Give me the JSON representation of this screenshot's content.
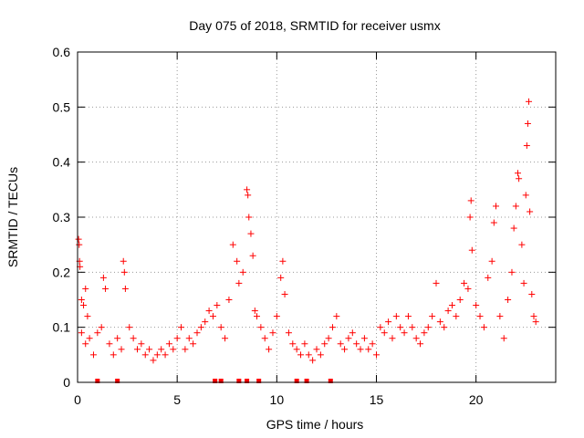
{
  "chart_data": {
    "type": "scatter",
    "title": "Day 075 of 2018, SRMTID for receiver usmx",
    "xlabel": "GPS time / hours",
    "ylabel": "SRMTID / TECUs",
    "xlim": [
      0,
      24
    ],
    "ylim": [
      0,
      0.6
    ],
    "xticks": [
      0,
      5,
      10,
      15,
      20
    ],
    "xtick_labels": [
      "0",
      "5",
      "10",
      "15",
      "20"
    ],
    "yticks": [
      0,
      0.1,
      0.2,
      0.3,
      0.4,
      0.5,
      0.6
    ],
    "ytick_labels": [
      "0",
      "0.1",
      "0.2",
      "0.3",
      "0.4",
      "0.5",
      "0.6"
    ],
    "grid": true,
    "marker": "+",
    "series_color": "#ff0000",
    "series": [
      {
        "name": "SRMTID",
        "points": [
          [
            0.05,
            0.26
          ],
          [
            0.08,
            0.25
          ],
          [
            0.1,
            0.22
          ],
          [
            0.12,
            0.21
          ],
          [
            0.2,
            0.15
          ],
          [
            0.3,
            0.14
          ],
          [
            0.4,
            0.17
          ],
          [
            0.5,
            0.12
          ],
          [
            0.2,
            0.09
          ],
          [
            0.4,
            0.07
          ],
          [
            0.6,
            0.08
          ],
          [
            0.8,
            0.05
          ],
          [
            1.0,
            0.09
          ],
          [
            1.2,
            0.1
          ],
          [
            1.3,
            0.19
          ],
          [
            1.4,
            0.17
          ],
          [
            1.6,
            0.07
          ],
          [
            1.8,
            0.05
          ],
          [
            2.0,
            0.08
          ],
          [
            2.2,
            0.06
          ],
          [
            2.3,
            0.22
          ],
          [
            2.35,
            0.2
          ],
          [
            2.4,
            0.17
          ],
          [
            2.6,
            0.1
          ],
          [
            2.8,
            0.08
          ],
          [
            3.0,
            0.06
          ],
          [
            3.2,
            0.07
          ],
          [
            3.4,
            0.05
          ],
          [
            3.6,
            0.06
          ],
          [
            3.8,
            0.04
          ],
          [
            4.0,
            0.05
          ],
          [
            4.2,
            0.06
          ],
          [
            4.4,
            0.05
          ],
          [
            4.6,
            0.07
          ],
          [
            4.8,
            0.06
          ],
          [
            5.0,
            0.08
          ],
          [
            5.2,
            0.1
          ],
          [
            5.4,
            0.06
          ],
          [
            5.6,
            0.08
          ],
          [
            5.8,
            0.07
          ],
          [
            6.0,
            0.09
          ],
          [
            6.2,
            0.1
          ],
          [
            6.4,
            0.11
          ],
          [
            6.6,
            0.13
          ],
          [
            6.8,
            0.12
          ],
          [
            7.0,
            0.14
          ],
          [
            7.2,
            0.1
          ],
          [
            7.4,
            0.08
          ],
          [
            7.6,
            0.15
          ],
          [
            7.8,
            0.25
          ],
          [
            8.0,
            0.22
          ],
          [
            8.1,
            0.18
          ],
          [
            8.3,
            0.2
          ],
          [
            8.5,
            0.35
          ],
          [
            8.55,
            0.34
          ],
          [
            8.6,
            0.3
          ],
          [
            8.7,
            0.27
          ],
          [
            8.8,
            0.23
          ],
          [
            8.9,
            0.13
          ],
          [
            9.0,
            0.12
          ],
          [
            9.2,
            0.1
          ],
          [
            9.4,
            0.08
          ],
          [
            9.6,
            0.06
          ],
          [
            9.8,
            0.09
          ],
          [
            10.0,
            0.12
          ],
          [
            10.2,
            0.19
          ],
          [
            10.3,
            0.22
          ],
          [
            10.4,
            0.16
          ],
          [
            10.6,
            0.09
          ],
          [
            10.8,
            0.07
          ],
          [
            11.0,
            0.06
          ],
          [
            11.2,
            0.05
          ],
          [
            11.4,
            0.07
          ],
          [
            11.6,
            0.05
          ],
          [
            11.8,
            0.04
          ],
          [
            12.0,
            0.06
          ],
          [
            12.2,
            0.05
          ],
          [
            12.4,
            0.07
          ],
          [
            12.6,
            0.08
          ],
          [
            12.8,
            0.1
          ],
          [
            13.0,
            0.12
          ],
          [
            13.2,
            0.07
          ],
          [
            13.4,
            0.06
          ],
          [
            13.6,
            0.08
          ],
          [
            13.8,
            0.09
          ],
          [
            14.0,
            0.07
          ],
          [
            14.2,
            0.06
          ],
          [
            14.4,
            0.08
          ],
          [
            14.6,
            0.06
          ],
          [
            14.8,
            0.07
          ],
          [
            15.0,
            0.05
          ],
          [
            15.2,
            0.1
          ],
          [
            15.4,
            0.09
          ],
          [
            15.6,
            0.11
          ],
          [
            15.8,
            0.08
          ],
          [
            16.0,
            0.12
          ],
          [
            16.2,
            0.1
          ],
          [
            16.4,
            0.09
          ],
          [
            16.6,
            0.12
          ],
          [
            16.8,
            0.1
          ],
          [
            17.0,
            0.08
          ],
          [
            17.2,
            0.07
          ],
          [
            17.4,
            0.09
          ],
          [
            17.6,
            0.1
          ],
          [
            17.8,
            0.12
          ],
          [
            18.0,
            0.18
          ],
          [
            18.2,
            0.11
          ],
          [
            18.4,
            0.1
          ],
          [
            18.6,
            0.13
          ],
          [
            18.8,
            0.14
          ],
          [
            19.0,
            0.12
          ],
          [
            19.2,
            0.15
          ],
          [
            19.4,
            0.18
          ],
          [
            19.6,
            0.17
          ],
          [
            19.7,
            0.3
          ],
          [
            19.75,
            0.33
          ],
          [
            19.8,
            0.24
          ],
          [
            20.0,
            0.14
          ],
          [
            20.2,
            0.12
          ],
          [
            20.4,
            0.1
          ],
          [
            20.6,
            0.19
          ],
          [
            20.8,
            0.22
          ],
          [
            20.9,
            0.29
          ],
          [
            21.0,
            0.32
          ],
          [
            21.2,
            0.12
          ],
          [
            21.4,
            0.08
          ],
          [
            21.6,
            0.15
          ],
          [
            21.8,
            0.2
          ],
          [
            21.9,
            0.28
          ],
          [
            22.0,
            0.32
          ],
          [
            22.1,
            0.38
          ],
          [
            22.15,
            0.37
          ],
          [
            22.3,
            0.25
          ],
          [
            22.4,
            0.18
          ],
          [
            22.5,
            0.34
          ],
          [
            22.55,
            0.43
          ],
          [
            22.6,
            0.47
          ],
          [
            22.65,
            0.51
          ],
          [
            22.7,
            0.31
          ],
          [
            22.8,
            0.16
          ],
          [
            22.9,
            0.12
          ],
          [
            23.0,
            0.11
          ]
        ]
      }
    ],
    "gap_markers_x": [
      1.0,
      2.0,
      6.9,
      7.2,
      8.1,
      8.5,
      9.1,
      11.0,
      11.5,
      12.7
    ]
  }
}
